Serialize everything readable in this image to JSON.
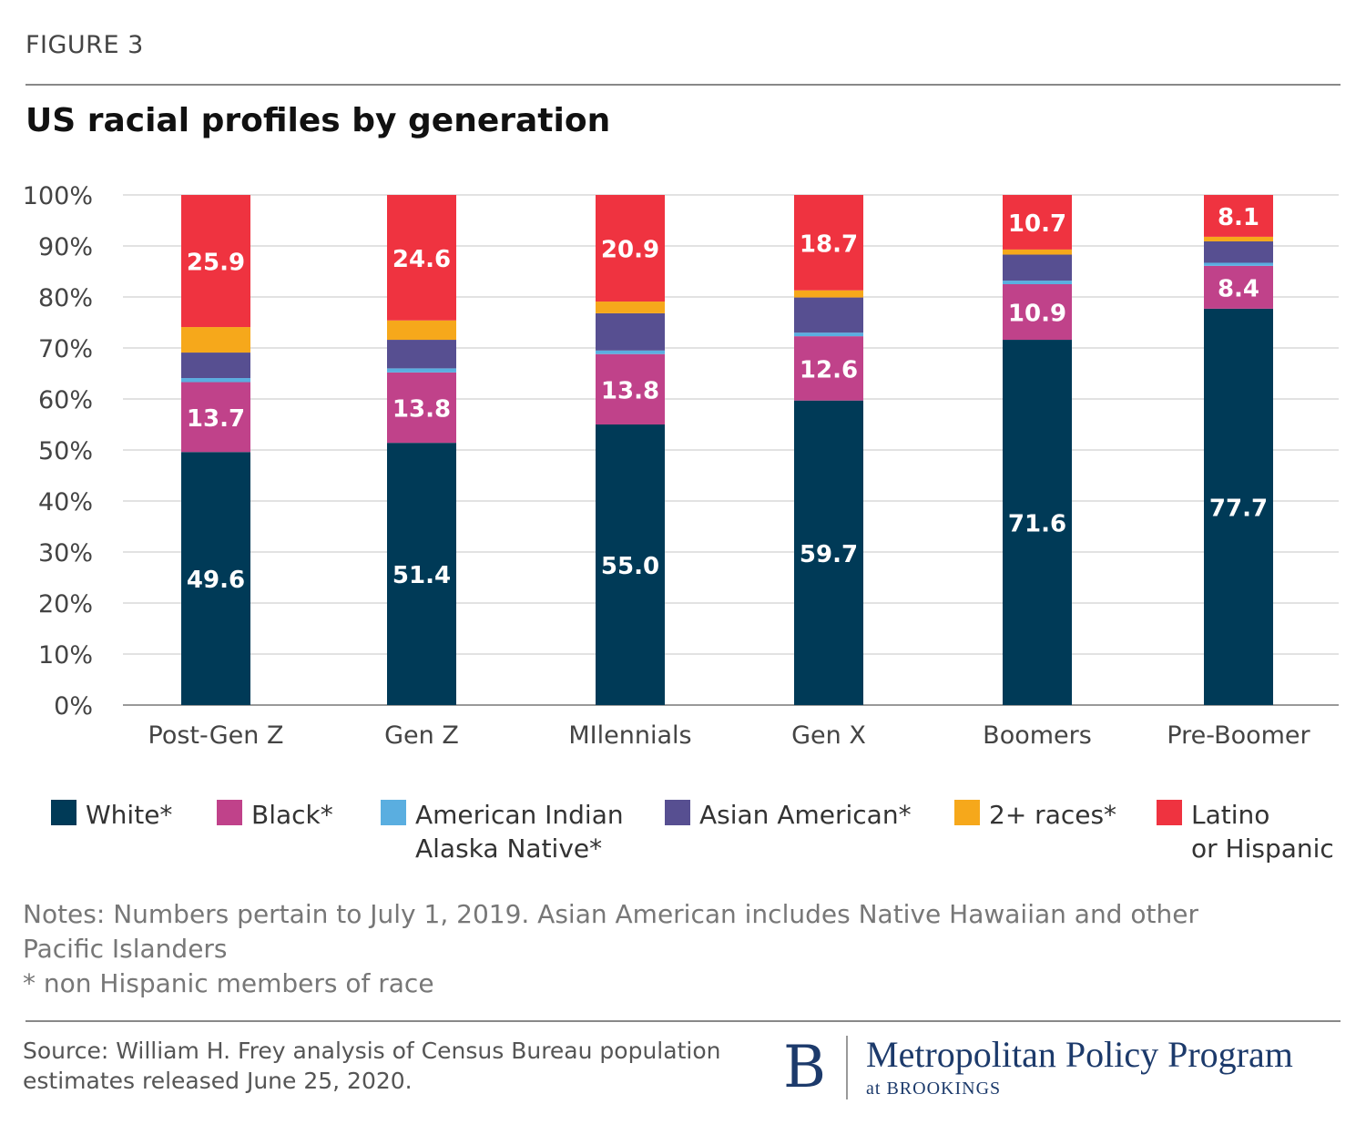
{
  "figure_label": "FIGURE 3",
  "chart_data": {
    "type": "bar",
    "stacked": true,
    "title": "US racial profiles by generation",
    "categories": [
      "Post-Gen Z",
      "Gen Z",
      "MIlennials",
      "Gen X",
      "Boomers",
      "Pre-Boomer"
    ],
    "y_ticks": [
      "0%",
      "10%",
      "20%",
      "30%",
      "40%",
      "50%",
      "60%",
      "70%",
      "80%",
      "90%",
      "100%"
    ],
    "ylim": [
      0,
      100
    ],
    "grid": true,
    "legend_position": "bottom",
    "series": [
      {
        "name": "White*",
        "color": "#003a57",
        "values": [
          49.6,
          51.4,
          55.0,
          59.7,
          71.6,
          77.7
        ],
        "labels": [
          "49.6",
          "51.4",
          "55.0",
          "59.7",
          "71.6",
          "77.7"
        ]
      },
      {
        "name": "Black*",
        "color": "#c0428a",
        "values": [
          13.7,
          13.8,
          13.8,
          12.6,
          10.9,
          8.4
        ],
        "labels": [
          "13.7",
          "13.8",
          "13.8",
          "12.6",
          "10.9",
          "8.4"
        ]
      },
      {
        "name": "American Indian Alaska Native*",
        "color": "#5aaee0",
        "values": [
          0.8,
          0.8,
          0.7,
          0.7,
          0.7,
          0.6
        ],
        "labels": [
          "",
          "",
          "",
          "",
          "",
          ""
        ]
      },
      {
        "name": "Asian American*",
        "color": "#574f91",
        "values": [
          5.0,
          5.6,
          7.3,
          6.9,
          5.1,
          4.2
        ],
        "labels": [
          "",
          "",
          "",
          "",
          "",
          ""
        ]
      },
      {
        "name": "2+ races*",
        "color": "#f6a81b",
        "values": [
          5.0,
          3.8,
          2.3,
          1.4,
          1.0,
          0.9
        ],
        "labels": [
          "",
          "",
          "",
          "",
          "",
          ""
        ]
      },
      {
        "name": "Latino or Hispanic",
        "color": "#ef3340",
        "values": [
          25.9,
          24.6,
          20.9,
          18.7,
          10.7,
          8.1
        ],
        "labels": [
          "25.9",
          "24.6",
          "20.9",
          "18.7",
          "10.7",
          "8.1"
        ]
      }
    ]
  },
  "legend": [
    {
      "line1": "White*",
      "line2": "",
      "color": "#003a57"
    },
    {
      "line1": "Black*",
      "line2": "",
      "color": "#c0428a"
    },
    {
      "line1": "American Indian",
      "line2": "Alaska Native*",
      "color": "#5aaee0"
    },
    {
      "line1": "Asian American*",
      "line2": "",
      "color": "#574f91"
    },
    {
      "line1": "2+ races*",
      "line2": "",
      "color": "#f6a81b"
    },
    {
      "line1": "Latino",
      "line2": "or Hispanic",
      "color": "#ef3340"
    }
  ],
  "notes": {
    "line1": "Notes: Numbers pertain to July 1, 2019. Asian American includes Native Hawaiian and other",
    "line2": "Pacific Islanders",
    "line3": "* non Hispanic members of race"
  },
  "source": {
    "line1": "Source: William H. Frey analysis of Census Bureau population",
    "line2": "estimates released June 25, 2020."
  },
  "logo": {
    "letter": "B",
    "name": "Metropolitan Policy Program",
    "sub": "at BROOKINGS"
  }
}
